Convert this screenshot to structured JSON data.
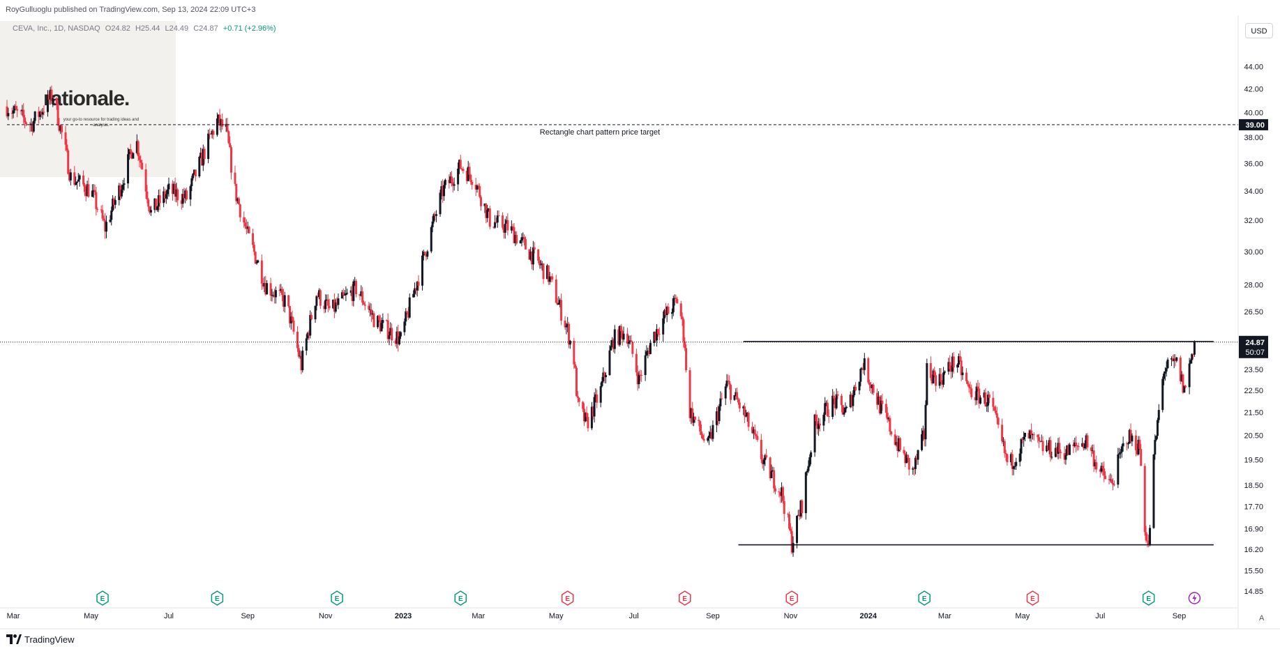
{
  "header": {
    "publisher": "RoyGulluoglu published on TradingView.com, Sep 13, 2024 22:09 UTC+3"
  },
  "legend": {
    "symbol": "CEVA, Inc., 1D, NASDAQ",
    "open": "O24.82",
    "high": "H25.44",
    "low": "L24.49",
    "close": "C24.87",
    "change": "+0.71 (+2.96%)"
  },
  "watermark": {
    "brand": "rationale.",
    "tagline": "your go-to resource for trading ideas and analysis."
  },
  "currency_button": "USD",
  "auto_button": "A",
  "footer_brand": "TradingView",
  "colors": {
    "up": "#131722",
    "down": "#f23645",
    "text": "#131722",
    "earnings_green": "#089981",
    "earnings_red": "#f23645",
    "dividend_purple": "#9c27b0"
  },
  "chart_data": {
    "type": "candlestick",
    "title": "",
    "yscale": "log",
    "ylim": [
      14.6,
      46.5
    ],
    "xlim": [
      "2022-02-24",
      "2024-10-20"
    ],
    "y_ticks": [
      "44.00",
      "42.00",
      "40.00",
      "38.00",
      "36.00",
      "34.00",
      "32.00",
      "30.00",
      "28.00",
      "26.50",
      "23.50",
      "22.50",
      "21.50",
      "20.50",
      "19.50",
      "18.50",
      "17.70",
      "16.90",
      "16.20",
      "15.50",
      "14.85"
    ],
    "x_ticks": [
      {
        "label": "Mar",
        "date": "2022-03-01"
      },
      {
        "label": "May",
        "date": "2022-05-01"
      },
      {
        "label": "Jul",
        "date": "2022-07-01"
      },
      {
        "label": "Sep",
        "date": "2022-09-01"
      },
      {
        "label": "Nov",
        "date": "2022-11-01"
      },
      {
        "label": "2023",
        "date": "2023-01-01"
      },
      {
        "label": "Mar",
        "date": "2023-03-01"
      },
      {
        "label": "May",
        "date": "2023-05-01"
      },
      {
        "label": "Jul",
        "date": "2023-07-01"
      },
      {
        "label": "Sep",
        "date": "2023-09-01"
      },
      {
        "label": "Nov",
        "date": "2023-11-01"
      },
      {
        "label": "2024",
        "date": "2024-01-01"
      },
      {
        "label": "Mar",
        "date": "2024-03-01"
      },
      {
        "label": "May",
        "date": "2024-05-01"
      },
      {
        "label": "Jul",
        "date": "2024-07-01"
      },
      {
        "label": "Sep",
        "date": "2024-09-01"
      }
    ],
    "price_anchors": [
      [
        "2022-02-24",
        40.5
      ],
      [
        "2022-03-15",
        39.0
      ],
      [
        "2022-04-01",
        41.5
      ],
      [
        "2022-04-15",
        35.0
      ],
      [
        "2022-05-01",
        34.0
      ],
      [
        "2022-05-12",
        31.5
      ],
      [
        "2022-05-25",
        34.5
      ],
      [
        "2022-06-05",
        38.0
      ],
      [
        "2022-06-17",
        32.5
      ],
      [
        "2022-07-01",
        34.0
      ],
      [
        "2022-07-15",
        33.5
      ],
      [
        "2022-08-08",
        39.3
      ],
      [
        "2022-08-15",
        38.5
      ],
      [
        "2022-08-22",
        34.0
      ],
      [
        "2022-09-01",
        31.0
      ],
      [
        "2022-09-15",
        28.0
      ],
      [
        "2022-10-01",
        27.0
      ],
      [
        "2022-10-13",
        23.7
      ],
      [
        "2022-10-25",
        27.5
      ],
      [
        "2022-11-05",
        26.5
      ],
      [
        "2022-11-25",
        27.8
      ],
      [
        "2022-12-10",
        26.0
      ],
      [
        "2022-12-30",
        25.0
      ],
      [
        "2023-01-15",
        29.0
      ],
      [
        "2023-02-01",
        34.0
      ],
      [
        "2023-02-15",
        35.8
      ],
      [
        "2023-02-25",
        35.0
      ],
      [
        "2023-03-10",
        32.0
      ],
      [
        "2023-03-25",
        31.5
      ],
      [
        "2023-04-10",
        30.0
      ],
      [
        "2023-04-25",
        28.5
      ],
      [
        "2023-05-10",
        25.5
      ],
      [
        "2023-05-15",
        24.0
      ],
      [
        "2023-05-18",
        21.8
      ],
      [
        "2023-05-25",
        21.0
      ],
      [
        "2023-06-05",
        22.5
      ],
      [
        "2023-06-15",
        25.0
      ],
      [
        "2023-06-25",
        25.5
      ],
      [
        "2023-07-05",
        23.0
      ],
      [
        "2023-07-15",
        25.0
      ],
      [
        "2023-07-25",
        26.2
      ],
      [
        "2023-08-05",
        27.2
      ],
      [
        "2023-08-10",
        24.8
      ],
      [
        "2023-08-12",
        21.8
      ],
      [
        "2023-08-28",
        20.0
      ],
      [
        "2023-09-12",
        22.8
      ],
      [
        "2023-09-25",
        21.5
      ],
      [
        "2023-10-10",
        19.5
      ],
      [
        "2023-10-25",
        18.2
      ],
      [
        "2023-11-02",
        16.4
      ],
      [
        "2023-11-10",
        17.8
      ],
      [
        "2023-11-20",
        21.0
      ],
      [
        "2023-12-05",
        22.0
      ],
      [
        "2023-12-15",
        21.5
      ],
      [
        "2023-12-28",
        23.8
      ],
      [
        "2024-01-10",
        21.8
      ],
      [
        "2024-01-25",
        20.0
      ],
      [
        "2024-02-05",
        19.0
      ],
      [
        "2024-02-14",
        20.5
      ],
      [
        "2024-02-16",
        23.5
      ],
      [
        "2024-02-26",
        23.0
      ],
      [
        "2024-03-10",
        24.0
      ],
      [
        "2024-03-20",
        22.5
      ],
      [
        "2024-04-05",
        22.0
      ],
      [
        "2024-04-20",
        19.2
      ],
      [
        "2024-05-05",
        20.5
      ],
      [
        "2024-05-15",
        20.0
      ],
      [
        "2024-06-05",
        19.8
      ],
      [
        "2024-06-20",
        20.3
      ],
      [
        "2024-07-01",
        19.0
      ],
      [
        "2024-07-10",
        18.5
      ],
      [
        "2024-07-22",
        20.5
      ],
      [
        "2024-08-01",
        20.0
      ],
      [
        "2024-08-05",
        17.0
      ],
      [
        "2024-08-08",
        16.2
      ],
      [
        "2024-08-12",
        19.5
      ],
      [
        "2024-08-20",
        23.5
      ],
      [
        "2024-08-30",
        23.8
      ],
      [
        "2024-09-05",
        22.5
      ],
      [
        "2024-09-13",
        24.87
      ]
    ],
    "horizontal_lines": [
      {
        "price": 39.0,
        "style": "dashed",
        "label": "Rectangle chart pattern price target",
        "badge": "39.00",
        "from": "2022-02-24",
        "to": "2024-10-20"
      },
      {
        "price": 24.9,
        "style": "solid",
        "label": "",
        "from": "2023-09-25",
        "to": "2024-09-28"
      },
      {
        "price": 16.35,
        "style": "solid",
        "label": "",
        "from": "2023-09-21",
        "to": "2024-09-28"
      }
    ],
    "last_price": {
      "value": "24.87",
      "countdown": "50:07",
      "price": 24.87
    },
    "events": [
      {
        "date": "2022-05-10",
        "type": "E",
        "color": "green"
      },
      {
        "date": "2022-08-08",
        "type": "E",
        "color": "green"
      },
      {
        "date": "2022-11-10",
        "type": "E",
        "color": "green"
      },
      {
        "date": "2023-02-15",
        "type": "E",
        "color": "green"
      },
      {
        "date": "2023-05-10",
        "type": "E",
        "color": "red"
      },
      {
        "date": "2023-08-10",
        "type": "E",
        "color": "red"
      },
      {
        "date": "2023-11-02",
        "type": "E",
        "color": "red"
      },
      {
        "date": "2024-02-14",
        "type": "E",
        "color": "green"
      },
      {
        "date": "2024-05-09",
        "type": "E",
        "color": "red"
      },
      {
        "date": "2024-08-08",
        "type": "E",
        "color": "green"
      },
      {
        "date": "2024-09-13",
        "type": "dividend",
        "color": "purple"
      }
    ]
  }
}
